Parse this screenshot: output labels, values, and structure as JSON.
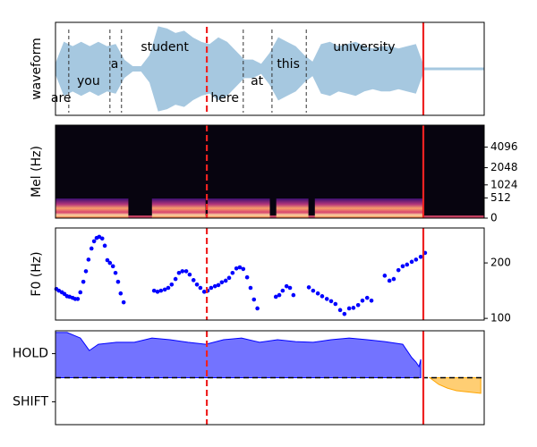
{
  "chart_data": [
    {
      "type": "waveform",
      "ylabel": "waveform",
      "xlim": [
        0,
        100
      ],
      "ylim": [
        -1.05,
        1.05
      ],
      "color": "#a6c8e0",
      "x": [
        0,
        2,
        4,
        6,
        8,
        10,
        12,
        14,
        16,
        18,
        20,
        22,
        24,
        26,
        28,
        30,
        32,
        34,
        36,
        38,
        40,
        42,
        44,
        46,
        48,
        50,
        52,
        54,
        56,
        58,
        60,
        62,
        64,
        66,
        68,
        70,
        72,
        74,
        76,
        78,
        80,
        82,
        84,
        86,
        88,
        90,
        92,
        94,
        96,
        98,
        100
      ],
      "values": [
        0.1,
        0.6,
        0.5,
        0.6,
        0.5,
        0.6,
        0.5,
        0.55,
        0.2,
        0.05,
        0.05,
        0.3,
        0.95,
        0.9,
        0.8,
        0.85,
        0.7,
        0.6,
        0.55,
        0.7,
        0.6,
        0.4,
        0.2,
        0.2,
        0.1,
        0.35,
        0.7,
        0.6,
        0.5,
        0.3,
        0.15,
        0.55,
        0.6,
        0.5,
        0.55,
        0.6,
        0.5,
        0.45,
        0.5,
        0.5,
        0.45,
        0.5,
        0.55,
        0.02,
        0.02,
        0.02,
        0.02,
        0.02,
        0.02,
        0.02,
        0.02
      ],
      "words": [
        {
          "text": "are",
          "x": 1.3
        },
        {
          "text": "you",
          "x": 7.7
        },
        {
          "text": "a",
          "x": 13.8
        },
        {
          "text": "student",
          "x": 25.5
        },
        {
          "text": "here",
          "x": 39.5
        },
        {
          "text": "at",
          "x": 47.0
        },
        {
          "text": "this",
          "x": 54.3
        },
        {
          "text": "university",
          "x": 72.0
        }
      ],
      "boundaries": [
        3.1,
        12.7,
        15.4,
        43.8,
        50.5,
        58.5
      ],
      "vlines": [
        {
          "x": 35.3,
          "color": "#ee2222",
          "style": "dashed"
        },
        {
          "x": 85.8,
          "color": "#ee2222",
          "style": "solid"
        }
      ]
    },
    {
      "type": "spectrogram",
      "ylabel": "Mel (Hz)",
      "xlim": [
        0,
        100
      ],
      "ylim": [
        0,
        8000
      ],
      "yscale": "mel",
      "yticks": [
        0,
        512,
        1024,
        2048,
        4096
      ],
      "segments": [
        [
          0,
          17
        ],
        [
          22.5,
          35
        ],
        [
          35.5,
          50
        ],
        [
          51.5,
          59
        ],
        [
          60.5,
          86
        ]
      ],
      "vlines": [
        {
          "x": 35.3,
          "color": "#ee2222",
          "style": "dashed"
        },
        {
          "x": 85.8,
          "color": "#ee2222",
          "style": "solid"
        }
      ]
    },
    {
      "type": "scatter",
      "ylabel": "F0 (Hz)",
      "xlim": [
        0,
        100
      ],
      "ylim": [
        97,
        263
      ],
      "yticks": [
        100,
        200
      ],
      "color": "#0000ff",
      "x": [
        0.2,
        0.8,
        1.5,
        2.1,
        2.7,
        3.3,
        4.0,
        4.6,
        5.2,
        5.8,
        6.5,
        7.1,
        7.7,
        8.4,
        9.0,
        9.6,
        10.2,
        10.9,
        11.5,
        12.1,
        12.7,
        13.4,
        14.0,
        14.6,
        15.2,
        15.9,
        23.0,
        23.8,
        24.6,
        25.5,
        26.3,
        27.1,
        28.0,
        28.8,
        29.6,
        30.5,
        31.3,
        32.2,
        33.0,
        33.8,
        34.7,
        35.5,
        36.3,
        37.2,
        38.0,
        38.8,
        39.7,
        40.5,
        41.3,
        42.2,
        43.0,
        43.8,
        44.7,
        45.5,
        46.3,
        47.1,
        51.4,
        52.2,
        53.0,
        53.9,
        54.7,
        55.5,
        59.1,
        60.1,
        61.2,
        62.2,
        63.3,
        64.3,
        65.3,
        66.4,
        67.4,
        68.5,
        69.5,
        70.6,
        71.6,
        72.7,
        73.7,
        76.8,
        77.9,
        78.9,
        80.0,
        81.0,
        82.0,
        83.1,
        84.1,
        85.2,
        86.2
      ],
      "values": [
        153,
        150,
        147,
        144,
        140,
        139,
        137,
        135,
        135,
        147,
        166,
        185,
        206,
        226,
        239,
        245,
        247,
        244,
        231,
        205,
        200,
        194,
        182,
        166,
        145,
        129,
        150,
        148,
        150,
        152,
        155,
        161,
        171,
        182,
        185,
        185,
        179,
        169,
        161,
        155,
        148,
        150,
        155,
        158,
        160,
        165,
        168,
        173,
        182,
        190,
        192,
        189,
        174,
        155,
        134,
        118,
        139,
        142,
        150,
        158,
        155,
        142,
        156,
        150,
        145,
        140,
        135,
        131,
        126,
        115,
        108,
        118,
        119,
        124,
        132,
        137,
        132,
        177,
        168,
        171,
        187,
        194,
        197,
        202,
        206,
        211,
        218
      ],
      "vlines": [
        {
          "x": 35.3,
          "color": "#ee2222",
          "style": "dashed"
        },
        {
          "x": 85.8,
          "color": "#ee2222",
          "style": "solid"
        }
      ]
    },
    {
      "type": "area",
      "xlim": [
        0,
        100
      ],
      "ylim": [
        -1.95,
        1.95
      ],
      "yticks": [
        {
          "value": 1,
          "label": "HOLD"
        },
        {
          "value": -1,
          "label": "SHIFT"
        }
      ],
      "hline": 0,
      "series": [
        {
          "color": "#0000ff",
          "x": [
            0,
            2.7,
            5.8,
            7.9,
            10.0,
            14.2,
            18.4,
            22.5,
            26.7,
            30.9,
            35.1,
            39.2,
            43.4,
            47.6,
            51.8,
            56.0,
            60.1,
            64.3,
            68.5,
            72.7,
            76.8,
            81.0,
            83.1,
            84.1,
            84.8,
            85.2
          ],
          "values": [
            1.88,
            1.88,
            1.65,
            1.13,
            1.39,
            1.47,
            1.47,
            1.65,
            1.58,
            1.47,
            1.39,
            1.58,
            1.65,
            1.47,
            1.58,
            1.5,
            1.47,
            1.58,
            1.65,
            1.58,
            1.5,
            1.39,
            0.84,
            0.65,
            0.46,
            0.76
          ]
        },
        {
          "color": "#ffa500",
          "x": [
            87.3,
            89.4,
            91.4,
            93.5,
            95.6,
            99.2
          ],
          "values": [
            0,
            -0.28,
            -0.43,
            -0.54,
            -0.58,
            -0.65
          ]
        }
      ],
      "vlines": [
        {
          "x": 35.3,
          "color": "#ee2222",
          "style": "dashed"
        },
        {
          "x": 85.8,
          "color": "#ee2222",
          "style": "solid"
        }
      ]
    }
  ]
}
